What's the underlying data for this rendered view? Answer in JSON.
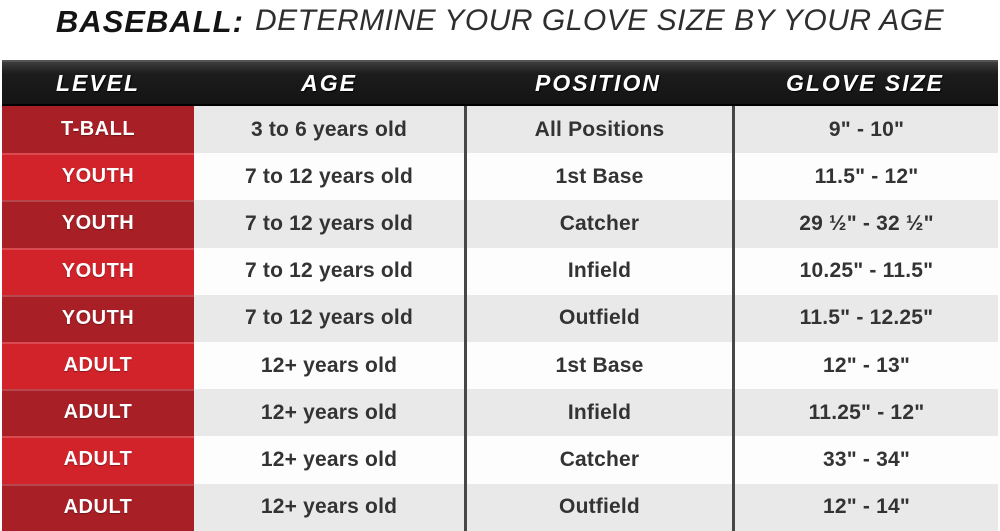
{
  "title": {
    "prefix": "BASEBALL:",
    "rest": "DETERMINE YOUR GLOVE SIZE BY YOUR AGE"
  },
  "chart_data": {
    "type": "table",
    "title": "BASEBALL: DETERMINE YOUR GLOVE SIZE BY YOUR AGE",
    "columns": [
      "LEVEL",
      "AGE",
      "POSITION",
      "GLOVE SIZE"
    ],
    "rows": [
      {
        "level": "T-BALL",
        "age": "3 to 6 years old",
        "position": "All Positions",
        "glove_size": "9\" - 10\""
      },
      {
        "level": "YOUTH",
        "age": "7 to 12 years old",
        "position": "1st Base",
        "glove_size": "11.5\" - 12\""
      },
      {
        "level": "YOUTH",
        "age": "7 to 12 years old",
        "position": "Catcher",
        "glove_size": "29 ½\" - 32 ½\""
      },
      {
        "level": "YOUTH",
        "age": "7 to 12 years old",
        "position": "Infield",
        "glove_size": "10.25\" - 11.5\""
      },
      {
        "level": "YOUTH",
        "age": "7 to 12 years old",
        "position": "Outfield",
        "glove_size": "11.5\" - 12.25\""
      },
      {
        "level": "ADULT",
        "age": "12+ years old",
        "position": "1st Base",
        "glove_size": "12\" - 13\""
      },
      {
        "level": "ADULT",
        "age": "12+ years old",
        "position": "Infield",
        "glove_size": "11.25\" - 12\""
      },
      {
        "level": "ADULT",
        "age": "12+ years old",
        "position": "Catcher",
        "glove_size": "33\" - 34\""
      },
      {
        "level": "ADULT",
        "age": "12+ years old",
        "position": "Outfield",
        "glove_size": "12\" - 14\""
      }
    ]
  },
  "colors": {
    "header_black": "#1c1c1c",
    "level_dark_red": "#a91f26",
    "level_bright_red": "#d2232b",
    "row_gray": "#e9e9e9",
    "row_white": "#fdfdfd",
    "column_rule": "#474747",
    "cell_text": "#333333"
  }
}
